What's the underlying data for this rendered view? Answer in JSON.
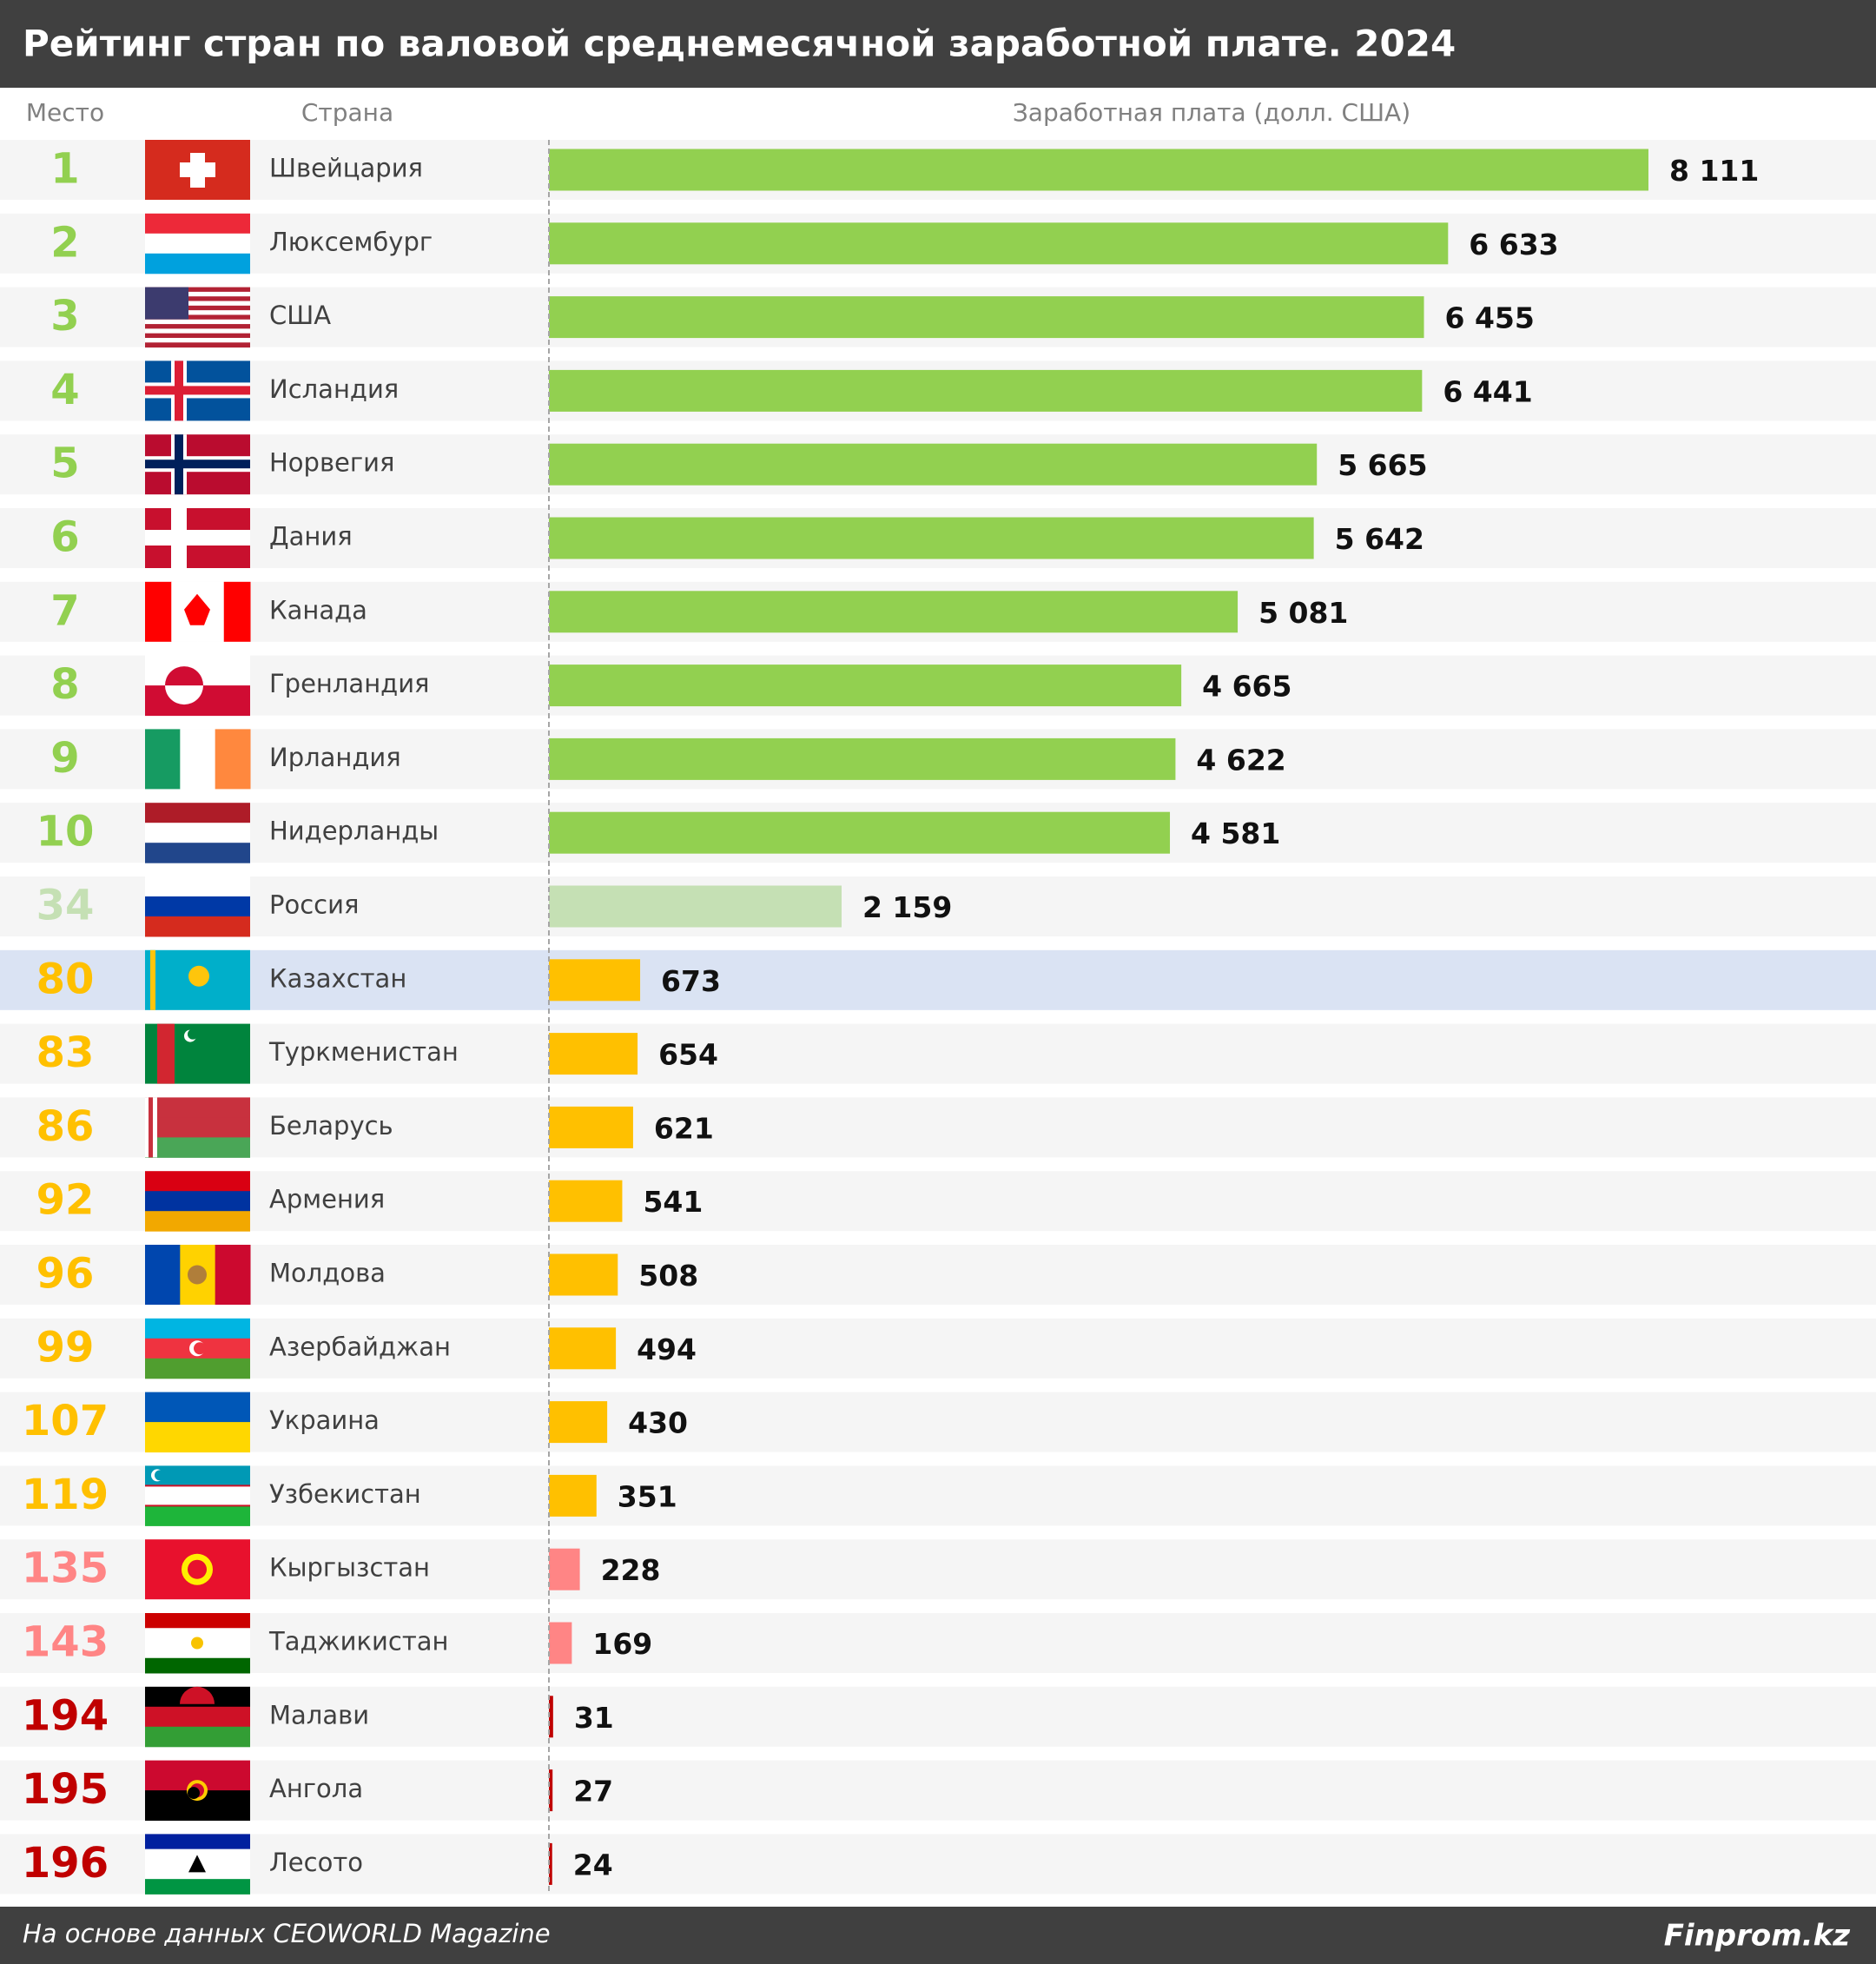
{
  "chart_data": {
    "type": "bar",
    "title": "Рейтинг стран по валовой среднемесячной заработной плате. 2024",
    "column_headers": [
      "Место",
      "Страна",
      "Заработная плата (долл. США)"
    ],
    "categories": [
      "Швейцария",
      "Люксембург",
      "США",
      "Исландия",
      "Норвегия",
      "Дания",
      "Канада",
      "Гренландия",
      "Ирландия",
      "Нидерланды",
      "Россия",
      "Казахстан",
      "Туркменистан",
      "Беларусь",
      "Армения",
      "Молдова",
      "Азербайджан",
      "Украина",
      "Узбекистан",
      "Кыргызстан",
      "Таджикистан",
      "Малави",
      "Ангола",
      "Лесото"
    ],
    "ranks": [
      1,
      2,
      3,
      4,
      5,
      6,
      7,
      8,
      9,
      10,
      34,
      80,
      83,
      86,
      92,
      96,
      99,
      107,
      119,
      135,
      143,
      194,
      195,
      196
    ],
    "values": [
      8111,
      6633,
      6455,
      6441,
      5665,
      5642,
      5081,
      4665,
      4622,
      4581,
      2159,
      673,
      654,
      621,
      541,
      508,
      494,
      430,
      351,
      228,
      169,
      31,
      27,
      24
    ],
    "value_labels": [
      "8 111",
      "6 633",
      "6 455",
      "6 441",
      "5 665",
      "5 642",
      "5 081",
      "4 665",
      "4 622",
      "4 581",
      "2 159",
      "673",
      "654",
      "621",
      "541",
      "508",
      "494",
      "430",
      "351",
      "228",
      "169",
      "31",
      "27",
      "24"
    ],
    "colors": [
      "#92d050",
      "#92d050",
      "#92d050",
      "#92d050",
      "#92d050",
      "#92d050",
      "#92d050",
      "#92d050",
      "#92d050",
      "#92d050",
      "#c5e0b4",
      "#ffc000",
      "#ffc000",
      "#ffc000",
      "#ffc000",
      "#ffc000",
      "#ffc000",
      "#ffc000",
      "#ffc000",
      "#ff8585",
      "#ff8585",
      "#c00000",
      "#c00000",
      "#c00000"
    ],
    "highlight": "Казахстан",
    "source": "На основе данных CEOWORLD Magazine",
    "brand": "Finprom.kz"
  }
}
